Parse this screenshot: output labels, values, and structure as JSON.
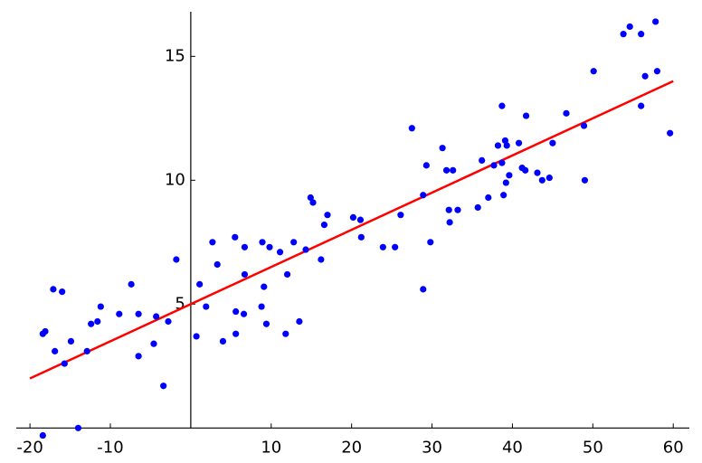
{
  "chart_data": {
    "type": "scatter",
    "xlim": [
      -21.7,
      62
    ],
    "ylim": [
      -0.5,
      16.8
    ],
    "xticks": [
      -20,
      -10,
      10,
      20,
      30,
      40,
      50,
      60
    ],
    "yticks": [
      5,
      10,
      15
    ],
    "series": [
      {
        "color": "#0000ff",
        "x": [
          -18.4,
          -18.1,
          -18.4,
          -17.1,
          -16.0,
          -16.9,
          -15.7,
          -14.9,
          -14.0,
          -12.9,
          -12.4,
          -11.6,
          -11.2,
          -8.9,
          -7.4,
          -6.5,
          -6.5,
          -4.6,
          -4.3,
          -3.4,
          -2.8,
          -1.8,
          0.7,
          1.1,
          1.9,
          2.7,
          3.3,
          4.0,
          5.5,
          5.6,
          5.6,
          6.7,
          6.7,
          6.6,
          8.8,
          8.9,
          9.1,
          9.4,
          9.8,
          11.1,
          11.8,
          12.0,
          12.8,
          13.5,
          14.3,
          14.9,
          15.2,
          16.2,
          16.6,
          17.0,
          20.2,
          21.1,
          21.2,
          23.9,
          25.4,
          26.1,
          27.5,
          28.9,
          28.9,
          29.3,
          29.8,
          31.3,
          31.8,
          32.1,
          32.2,
          32.6,
          33.2,
          35.7,
          36.2,
          37.0,
          37.7,
          38.2,
          38.7,
          38.7,
          38.9,
          39.1,
          39.2,
          39.3,
          39.6,
          40.8,
          41.2,
          41.6,
          41.7,
          43.1,
          43.7,
          44.6,
          45.0,
          46.7,
          48.9,
          49.0,
          50.1,
          53.8,
          54.6,
          56.0,
          57.8,
          56.0,
          56.5,
          58.0,
          59.6
        ],
        "values": [
          3.8,
          3.9,
          -0.3,
          5.6,
          5.5,
          3.1,
          2.6,
          3.5,
          0.0,
          3.1,
          4.2,
          4.3,
          4.9,
          4.6,
          5.8,
          4.6,
          2.9,
          3.4,
          4.5,
          1.7,
          4.3,
          6.8,
          3.7,
          5.8,
          4.9,
          7.5,
          6.6,
          3.5,
          7.7,
          4.7,
          3.8,
          7.3,
          6.2,
          4.6,
          4.9,
          7.5,
          5.7,
          4.2,
          7.3,
          7.1,
          3.8,
          6.2,
          7.5,
          4.3,
          7.2,
          9.3,
          9.1,
          6.8,
          8.2,
          8.6,
          8.5,
          8.4,
          7.7,
          7.3,
          7.3,
          8.6,
          12.1,
          9.4,
          5.6,
          10.6,
          7.5,
          11.3,
          10.4,
          8.8,
          8.3,
          10.4,
          8.8,
          8.9,
          10.8,
          9.3,
          10.6,
          11.4,
          13.0,
          10.7,
          9.4,
          11.6,
          9.9,
          11.4,
          10.2,
          11.5,
          10.5,
          10.4,
          12.6,
          10.3,
          10.0,
          10.1,
          11.5,
          12.7,
          12.2,
          10.0,
          14.4,
          15.9,
          16.2,
          15.9,
          16.4,
          13.0,
          14.2,
          14.4,
          11.9
        ]
      }
    ],
    "fit_line": {
      "color": "#ff0000",
      "x": [
        -20,
        60
      ],
      "values": [
        2.0,
        14.0
      ]
    }
  }
}
